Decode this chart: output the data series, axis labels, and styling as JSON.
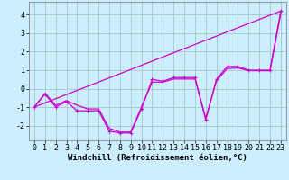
{
  "bg_color": "#cceeff",
  "grid_color": "#aacccc",
  "line_color": "#cc00cc",
  "xlabel": "Windchill (Refroidissement éolien,°C)",
  "xlim": [
    -0.5,
    23.5
  ],
  "ylim": [
    -2.8,
    4.7
  ],
  "yticks": [
    -2,
    -1,
    0,
    1,
    2,
    3,
    4
  ],
  "xticks": [
    0,
    1,
    2,
    3,
    4,
    5,
    6,
    7,
    8,
    9,
    10,
    11,
    12,
    13,
    14,
    15,
    16,
    17,
    18,
    19,
    20,
    21,
    22,
    23
  ],
  "series1_x": [
    0,
    1,
    2,
    3,
    4,
    5,
    6,
    7,
    8,
    9,
    10,
    11,
    12,
    13,
    14,
    15,
    16,
    17,
    18,
    19,
    20,
    21,
    22,
    23
  ],
  "series1_y": [
    -1.0,
    -0.3,
    -1.0,
    -0.7,
    -1.2,
    -1.2,
    -1.2,
    -2.3,
    -2.4,
    -2.4,
    -1.1,
    0.5,
    0.4,
    0.6,
    0.6,
    0.6,
    -1.7,
    0.5,
    1.2,
    1.2,
    1.0,
    1.0,
    1.0,
    4.2
  ],
  "series2_x": [
    0,
    23
  ],
  "series2_y": [
    -1.0,
    4.2
  ],
  "series3_x": [
    0,
    1,
    2,
    3,
    4,
    5,
    6,
    7,
    8,
    9,
    10,
    11,
    12,
    13,
    14,
    15,
    16,
    17,
    18,
    19,
    20,
    21,
    22,
    23
  ],
  "series3_y": [
    -1.0,
    -0.25,
    -0.9,
    -0.65,
    -0.9,
    -1.1,
    -1.1,
    -2.15,
    -2.35,
    -2.35,
    -1.0,
    0.35,
    0.35,
    0.52,
    0.52,
    0.52,
    -1.6,
    0.42,
    1.08,
    1.12,
    0.97,
    0.97,
    0.97,
    4.05
  ],
  "xlabel_fontsize": 6.5,
  "tick_fontsize": 6.0
}
